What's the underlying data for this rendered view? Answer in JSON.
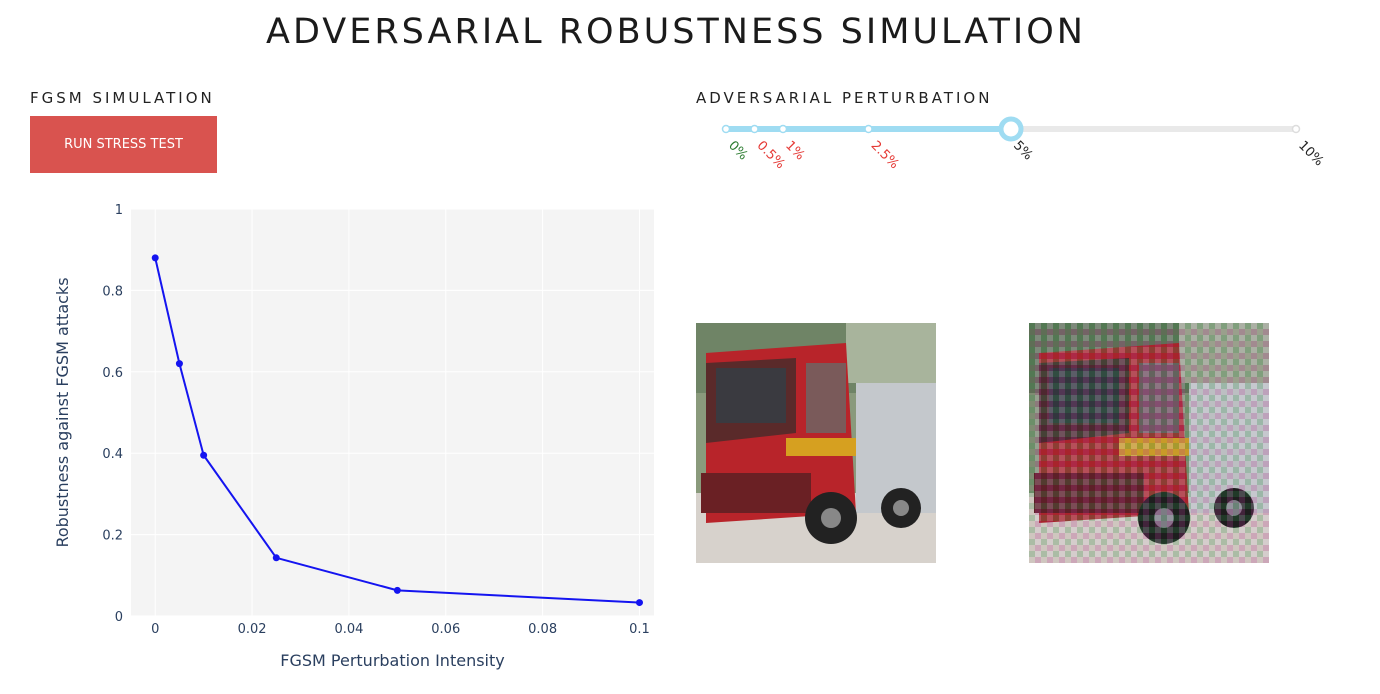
{
  "page": {
    "title": "ADVERSARIAL ROBUSTNESS SIMULATION"
  },
  "simulation": {
    "label": "FGSM SIMULATION",
    "button_label": "RUN STRESS TEST",
    "button_color": "#d9534f"
  },
  "perturbation": {
    "label": "ADVERSARIAL PERTURBATION",
    "marks": [
      {
        "value": 0,
        "label": "0%",
        "color": "#2e7d32"
      },
      {
        "value": 0.5,
        "label": "0.5%",
        "color": "#e53935"
      },
      {
        "value": 1,
        "label": "1%",
        "color": "#e53935"
      },
      {
        "value": 2.5,
        "label": "2.5%",
        "color": "#e53935"
      },
      {
        "value": 5,
        "label": "5%",
        "color": "#222222"
      },
      {
        "value": 10,
        "label": "10%",
        "color": "#222222"
      }
    ],
    "min": 0,
    "max": 10,
    "selected": 5,
    "track_color": "#9fdcf2",
    "rail_color": "#e9e9e9"
  },
  "chart_data": {
    "type": "line",
    "x": [
      0,
      0.005,
      0.01,
      0.025,
      0.05,
      0.1
    ],
    "y": [
      0.88,
      0.62,
      0.395,
      0.143,
      0.063,
      0.033
    ],
    "xlabel": "FGSM Perturbation Intensity",
    "ylabel": "Robustness against FGSM attacks",
    "xlim": [
      -0.005,
      0.103
    ],
    "ylim": [
      0,
      1
    ],
    "xticks": [
      0,
      0.02,
      0.04,
      0.06,
      0.08,
      0.1
    ],
    "xtick_labels": [
      "0",
      "0.02",
      "0.04",
      "0.06",
      "0.08",
      "0.1"
    ],
    "yticks": [
      0,
      0.2,
      0.4,
      0.6,
      0.8,
      1
    ],
    "ytick_labels": [
      "0",
      "0.2",
      "0.4",
      "0.6",
      "0.8",
      "1"
    ],
    "grid": true,
    "line_color": "#1414f0",
    "plot_bg": "#f4f4f4"
  },
  "images": {
    "original": {
      "icon": "fire-truck-image"
    },
    "adversarial": {
      "icon": "fire-truck-adversarial-image"
    }
  }
}
